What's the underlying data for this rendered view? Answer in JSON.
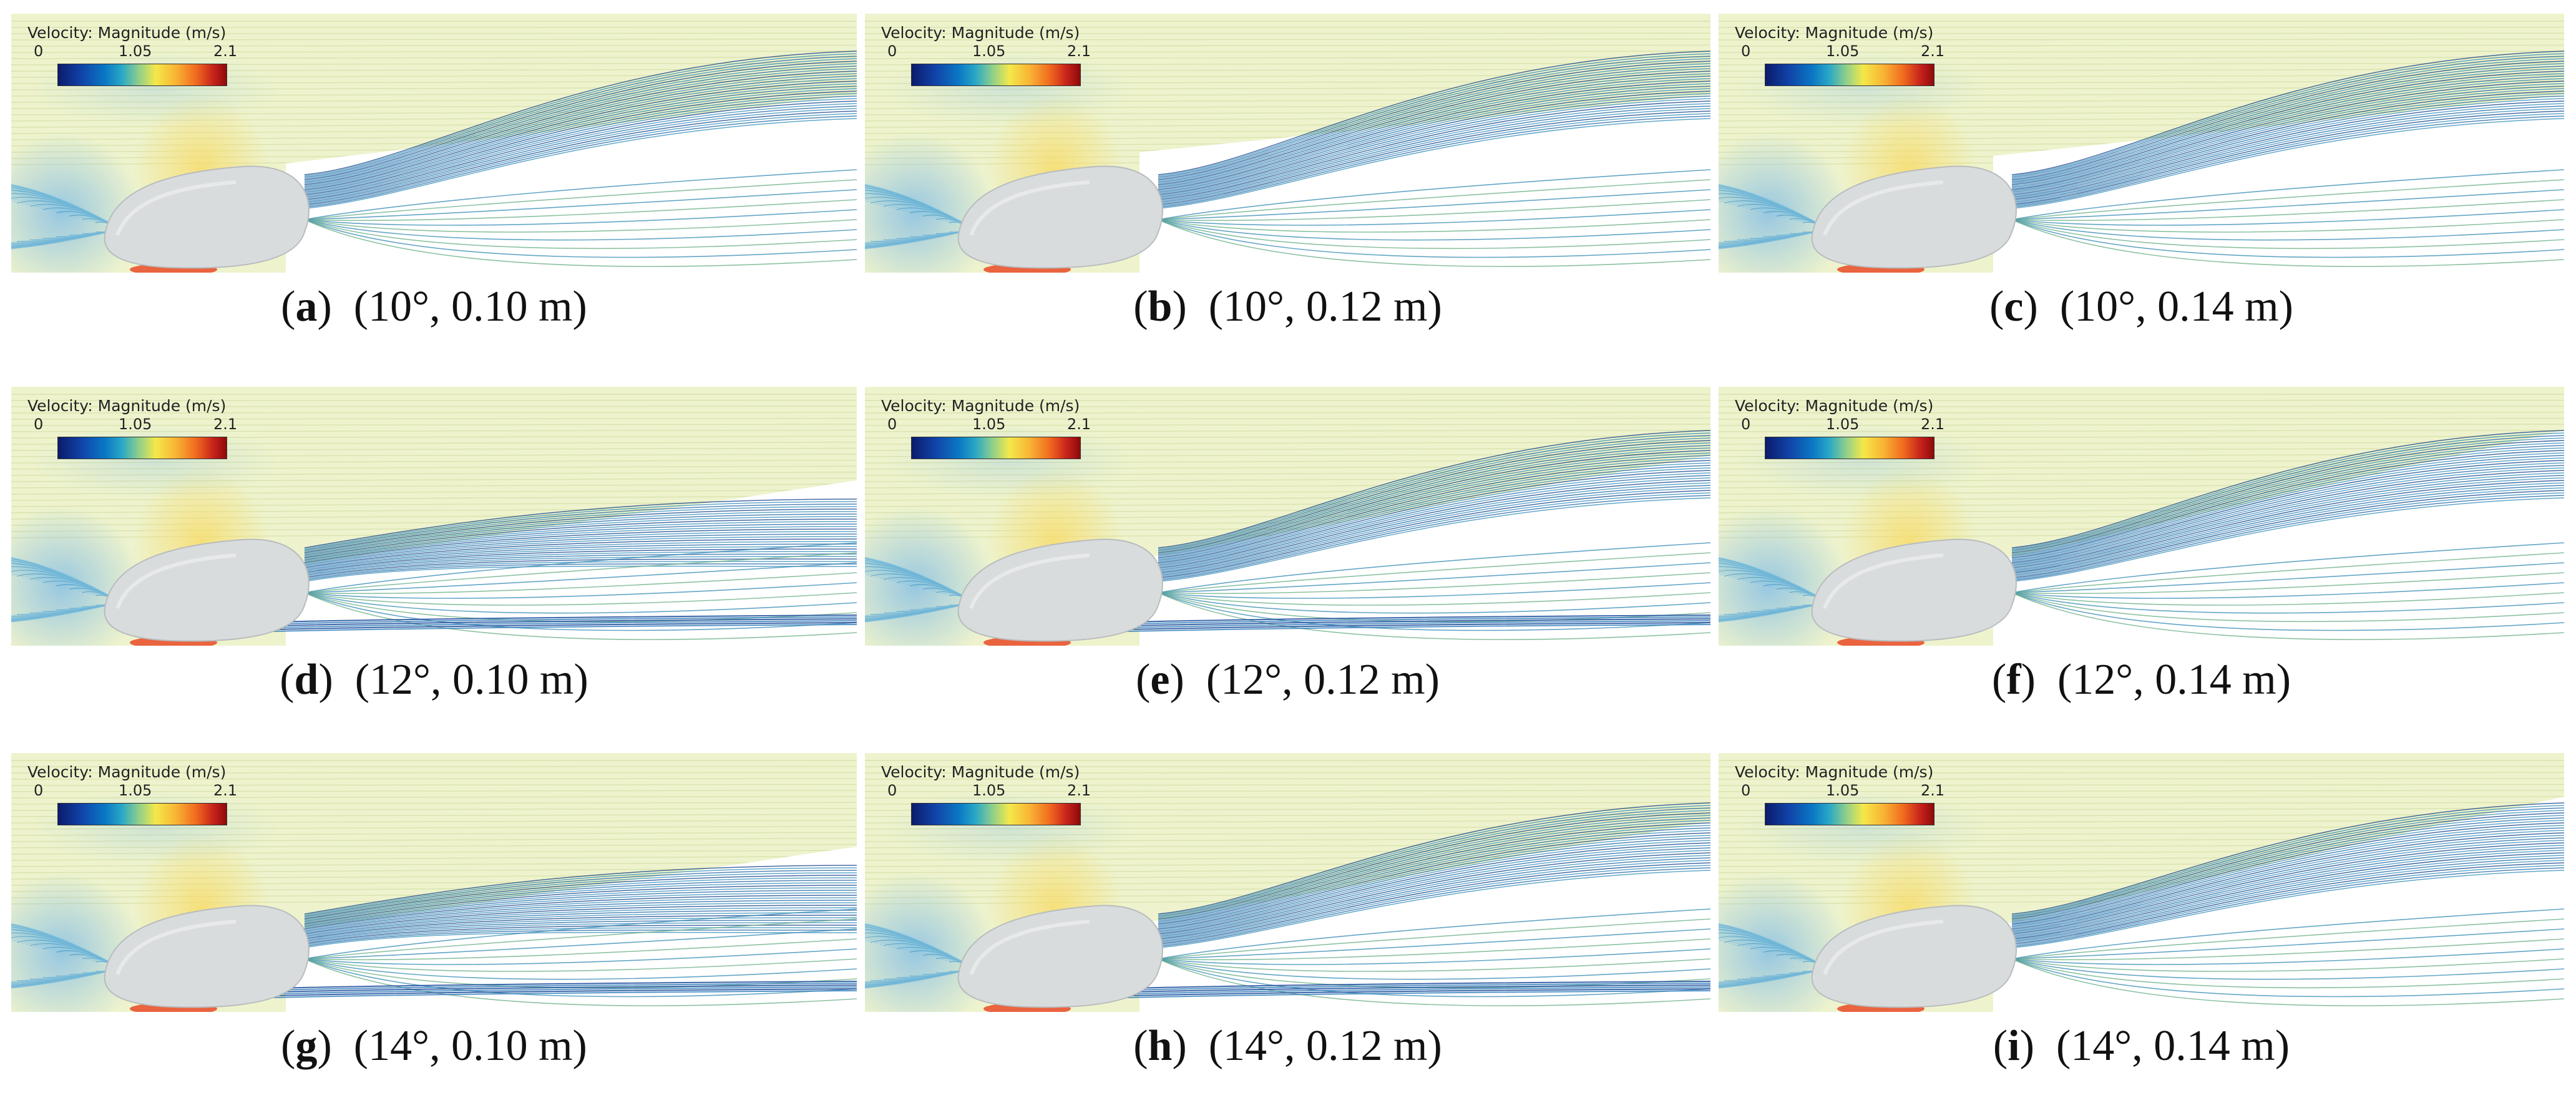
{
  "legend": {
    "title": "Velocity: Magnitude (m/s)",
    "min": "0",
    "mid": "1.05",
    "max": "2.1"
  },
  "panels": [
    {
      "letter": "a",
      "label": "(10°, 0.10 m)",
      "angle_deg": 10,
      "length_m": 0.1
    },
    {
      "letter": "b",
      "label": "(10°, 0.12 m)",
      "angle_deg": 10,
      "length_m": 0.12
    },
    {
      "letter": "c",
      "label": "(10°, 0.14 m)",
      "angle_deg": 10,
      "length_m": 0.14
    },
    {
      "letter": "d",
      "label": "(12°, 0.10 m)",
      "angle_deg": 12,
      "length_m": 0.1
    },
    {
      "letter": "e",
      "label": "(12°, 0.12 m)",
      "angle_deg": 12,
      "length_m": 0.12
    },
    {
      "letter": "f",
      "label": "(12°, 0.14 m)",
      "angle_deg": 12,
      "length_m": 0.14
    },
    {
      "letter": "g",
      "label": "(14°, 0.10 m)",
      "angle_deg": 14,
      "length_m": 0.1
    },
    {
      "letter": "h",
      "label": "(14°, 0.12 m)",
      "angle_deg": 14,
      "length_m": 0.12
    },
    {
      "letter": "i",
      "label": "(14°, 0.14 m)",
      "angle_deg": 14,
      "length_m": 0.14
    }
  ]
}
